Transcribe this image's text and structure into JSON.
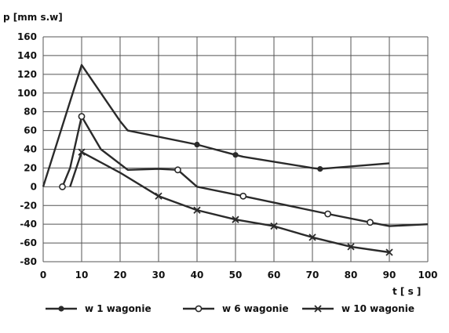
{
  "chart_data": {
    "type": "line",
    "title": "",
    "xlabel": "t [ s ]",
    "ylabel": "p [mm s.w]",
    "xlim": [
      0,
      100
    ],
    "ylim": [
      -80,
      160
    ],
    "xticks": [
      0,
      10,
      20,
      30,
      40,
      50,
      60,
      70,
      80,
      90,
      100
    ],
    "yticks": [
      160,
      140,
      120,
      100,
      80,
      60,
      40,
      20,
      0,
      -20,
      -40,
      -60,
      -80
    ],
    "grid": true,
    "legend_position": "bottom",
    "series": [
      {
        "name": "w 1 wagonie",
        "marker": "dot",
        "points": [
          [
            0,
            0
          ],
          [
            10,
            130
          ],
          [
            20,
            70
          ],
          [
            22,
            60
          ],
          [
            40,
            45
          ],
          [
            50,
            34
          ],
          [
            52,
            32
          ],
          [
            70,
            20
          ],
          [
            72,
            19
          ],
          [
            90,
            25
          ]
        ]
      },
      {
        "name": "w 6 wagonie",
        "marker": "circle",
        "points": [
          [
            5,
            0
          ],
          [
            7,
            20
          ],
          [
            10,
            75
          ],
          [
            15,
            40
          ],
          [
            22,
            18
          ],
          [
            30,
            19
          ],
          [
            35,
            18
          ],
          [
            40,
            0
          ],
          [
            52,
            -10
          ],
          [
            74,
            -29
          ],
          [
            85,
            -38
          ],
          [
            90,
            -42
          ],
          [
            100,
            -40
          ]
        ]
      },
      {
        "name": "w 10 wagonie",
        "marker": "cross",
        "points": [
          [
            7,
            0
          ],
          [
            10,
            37
          ],
          [
            20,
            15
          ],
          [
            30,
            -10
          ],
          [
            40,
            -25
          ],
          [
            50,
            -35
          ],
          [
            60,
            -42
          ],
          [
            70,
            -54
          ],
          [
            80,
            -64
          ],
          [
            90,
            -70
          ]
        ]
      }
    ]
  }
}
